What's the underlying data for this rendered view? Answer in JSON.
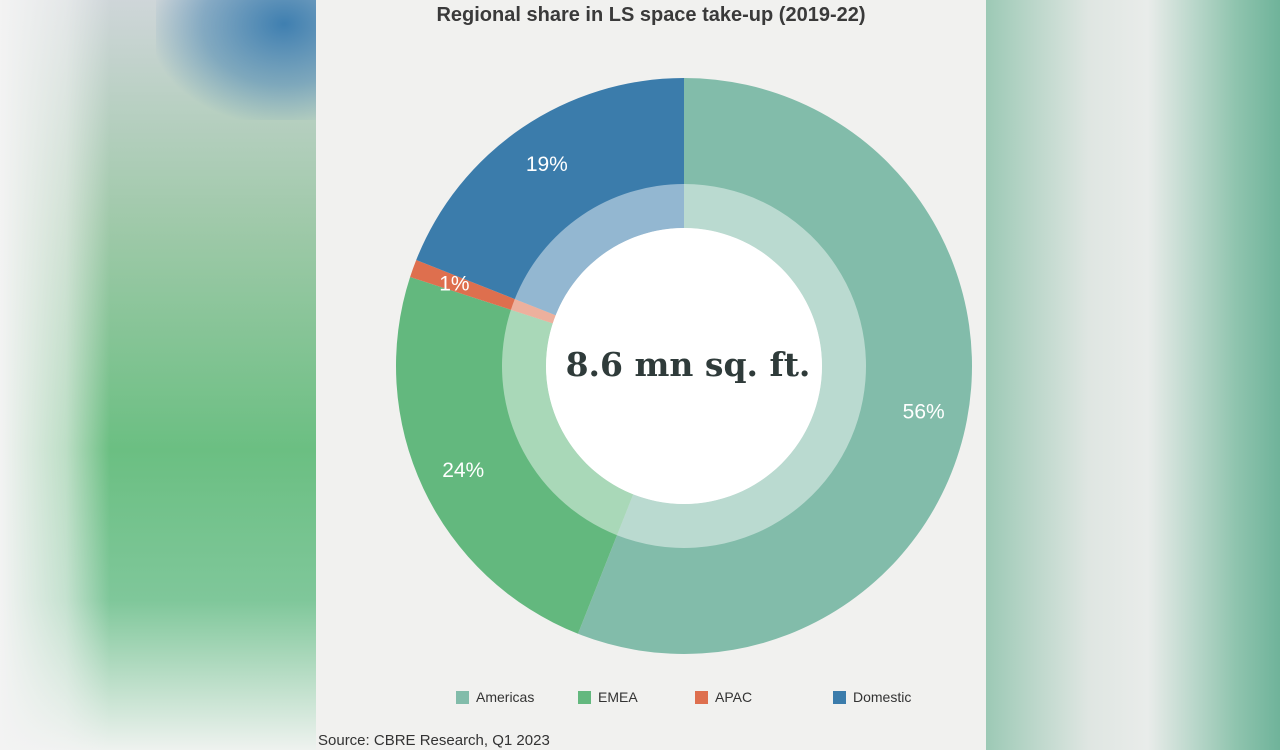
{
  "chart_data": {
    "type": "pie",
    "title": "Regional share in LS space take-up (2019-22)",
    "center_label": "8.6 mn sq. ft.",
    "categories": [
      "Americas",
      "EMEA",
      "APAC",
      "Domestic"
    ],
    "values": [
      56,
      24,
      1,
      19
    ],
    "value_labels": [
      "56%",
      "24%",
      "1%",
      "19%"
    ],
    "colors": [
      "#82bcaa",
      "#63b87e",
      "#de6f4e",
      "#3b7cab"
    ],
    "legend_position": "bottom",
    "source": "Source: CBRE Research, Q1 2023"
  }
}
